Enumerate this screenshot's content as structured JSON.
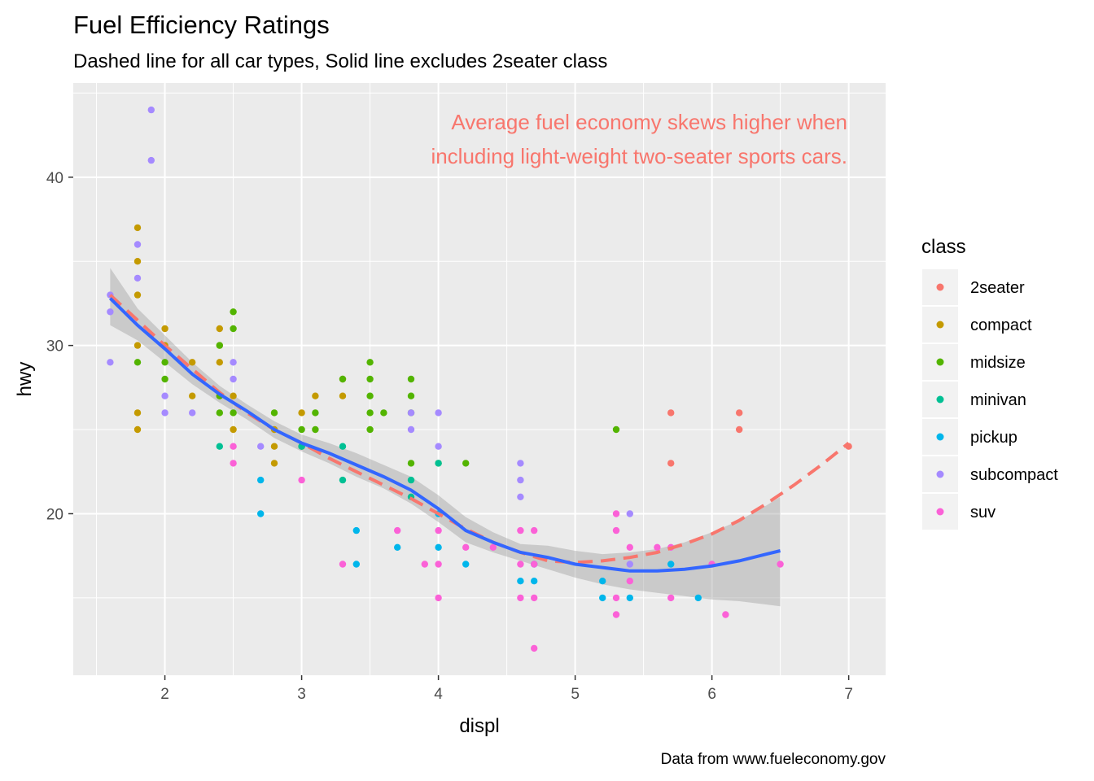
{
  "chart_data": {
    "type": "scatter",
    "title": "Fuel Efficiency Ratings",
    "subtitle": "Dashed line for all car types, Solid line excludes 2seater class",
    "xlabel": "displ",
    "ylabel": "hwy",
    "caption": "Data from www.fueleconomy.gov",
    "annotation": [
      "Average fuel economy skews higher when",
      "including light-weight two-seater sports cars."
    ],
    "annotation_color": "#F8766D",
    "xlim": [
      1.33,
      7.27
    ],
    "ylim": [
      10.4,
      45.6
    ],
    "x_ticks": [
      2,
      3,
      4,
      5,
      6,
      7
    ],
    "y_ticks": [
      20,
      30,
      40
    ],
    "grid": true,
    "legend": {
      "title": "class",
      "position": "right",
      "entries": [
        {
          "name": "2seater",
          "color": "#F8766D"
        },
        {
          "name": "compact",
          "color": "#C49A00"
        },
        {
          "name": "midsize",
          "color": "#53B400"
        },
        {
          "name": "minivan",
          "color": "#00C094"
        },
        {
          "name": "pickup",
          "color": "#00B6EB"
        },
        {
          "name": "subcompact",
          "color": "#A58AFF"
        },
        {
          "name": "suv",
          "color": "#FB61D7"
        }
      ]
    },
    "series": [
      {
        "name": "2seater",
        "color": "#F8766D",
        "points": [
          [
            5.7,
            26
          ],
          [
            5.7,
            23
          ],
          [
            6.2,
            26
          ],
          [
            6.2,
            25
          ],
          [
            7.0,
            24
          ]
        ]
      },
      {
        "name": "compact",
        "color": "#C49A00",
        "points": [
          [
            1.8,
            37
          ],
          [
            1.8,
            35
          ],
          [
            1.8,
            33
          ],
          [
            1.8,
            30
          ],
          [
            1.8,
            26
          ],
          [
            1.8,
            25
          ],
          [
            2.0,
            31
          ],
          [
            2.0,
            30
          ],
          [
            2.2,
            29
          ],
          [
            2.2,
            27
          ],
          [
            2.4,
            31
          ],
          [
            2.4,
            30
          ],
          [
            2.4,
            29
          ],
          [
            2.4,
            27
          ],
          [
            2.5,
            27
          ],
          [
            2.5,
            25
          ],
          [
            2.8,
            25
          ],
          [
            2.8,
            24
          ],
          [
            2.8,
            23
          ],
          [
            3.0,
            26
          ],
          [
            3.1,
            27
          ],
          [
            3.3,
            28
          ],
          [
            3.3,
            27
          ]
        ]
      },
      {
        "name": "midsize",
        "color": "#53B400",
        "points": [
          [
            1.8,
            29
          ],
          [
            2.0,
            29
          ],
          [
            2.0,
            28
          ],
          [
            2.4,
            30
          ],
          [
            2.4,
            27
          ],
          [
            2.4,
            26
          ],
          [
            2.5,
            32
          ],
          [
            2.5,
            31
          ],
          [
            2.5,
            26
          ],
          [
            2.8,
            26
          ],
          [
            3.0,
            25
          ],
          [
            3.0,
            24
          ],
          [
            3.1,
            26
          ],
          [
            3.1,
            25
          ],
          [
            3.3,
            28
          ],
          [
            3.5,
            29
          ],
          [
            3.5,
            28
          ],
          [
            3.5,
            27
          ],
          [
            3.5,
            26
          ],
          [
            3.5,
            25
          ],
          [
            3.6,
            26
          ],
          [
            3.8,
            28
          ],
          [
            3.8,
            27
          ],
          [
            3.8,
            26
          ],
          [
            3.8,
            23
          ],
          [
            4.0,
            23
          ],
          [
            4.2,
            23
          ],
          [
            5.3,
            25
          ]
        ]
      },
      {
        "name": "minivan",
        "color": "#00C094",
        "points": [
          [
            2.4,
            24
          ],
          [
            3.0,
            24
          ],
          [
            3.3,
            24
          ],
          [
            3.3,
            22
          ],
          [
            3.8,
            22
          ],
          [
            3.8,
            21
          ],
          [
            4.0,
            23
          ]
        ]
      },
      {
        "name": "pickup",
        "color": "#00B6EB",
        "points": [
          [
            2.7,
            22
          ],
          [
            2.7,
            20
          ],
          [
            3.4,
            19
          ],
          [
            3.4,
            17
          ],
          [
            3.7,
            18
          ],
          [
            4.0,
            20
          ],
          [
            4.0,
            18
          ],
          [
            4.2,
            17
          ],
          [
            4.6,
            16
          ],
          [
            4.7,
            17
          ],
          [
            4.7,
            16
          ],
          [
            5.2,
            16
          ],
          [
            5.2,
            15
          ],
          [
            5.4,
            15
          ],
          [
            5.7,
            17
          ],
          [
            5.9,
            15
          ]
        ]
      },
      {
        "name": "subcompact",
        "color": "#A58AFF",
        "points": [
          [
            1.6,
            33
          ],
          [
            1.6,
            32
          ],
          [
            1.6,
            29
          ],
          [
            1.8,
            36
          ],
          [
            1.8,
            34
          ],
          [
            1.9,
            44
          ],
          [
            1.9,
            41
          ],
          [
            2.0,
            27
          ],
          [
            2.0,
            26
          ],
          [
            2.2,
            26
          ],
          [
            2.5,
            29
          ],
          [
            2.5,
            28
          ],
          [
            2.7,
            24
          ],
          [
            3.8,
            26
          ],
          [
            3.8,
            25
          ],
          [
            4.0,
            26
          ],
          [
            4.0,
            24
          ],
          [
            4.6,
            23
          ],
          [
            4.6,
            22
          ],
          [
            4.6,
            21
          ],
          [
            5.4,
            20
          ],
          [
            5.4,
            17
          ]
        ]
      },
      {
        "name": "suv",
        "color": "#FB61D7",
        "points": [
          [
            2.5,
            24
          ],
          [
            2.5,
            23
          ],
          [
            3.0,
            22
          ],
          [
            3.3,
            17
          ],
          [
            3.7,
            19
          ],
          [
            3.9,
            17
          ],
          [
            4.0,
            19
          ],
          [
            4.0,
            17
          ],
          [
            4.0,
            15
          ],
          [
            4.2,
            18
          ],
          [
            4.4,
            18
          ],
          [
            4.6,
            19
          ],
          [
            4.6,
            17
          ],
          [
            4.6,
            15
          ],
          [
            4.7,
            19
          ],
          [
            4.7,
            17
          ],
          [
            4.7,
            15
          ],
          [
            4.7,
            12
          ],
          [
            5.3,
            20
          ],
          [
            5.3,
            19
          ],
          [
            5.3,
            15
          ],
          [
            5.3,
            14
          ],
          [
            5.4,
            18
          ],
          [
            5.4,
            16
          ],
          [
            5.7,
            18
          ],
          [
            5.7,
            15
          ],
          [
            5.6,
            18
          ],
          [
            6.0,
            17
          ],
          [
            6.1,
            14
          ],
          [
            6.5,
            17
          ]
        ]
      }
    ],
    "smooth_all": {
      "style": "dashed",
      "color": "#F8766D",
      "x": [
        1.6,
        1.8,
        2.0,
        2.2,
        2.4,
        2.6,
        2.8,
        3.0,
        3.2,
        3.4,
        3.6,
        3.8,
        4.0,
        4.2,
        4.4,
        4.6,
        4.8,
        5.0,
        5.2,
        5.4,
        5.6,
        5.8,
        6.0,
        6.2,
        6.4,
        6.6,
        6.8,
        7.0
      ],
      "y": [
        33.0,
        31.5,
        30.0,
        28.6,
        27.2,
        26.0,
        25.0,
        24.2,
        23.3,
        22.5,
        21.7,
        20.9,
        20.0,
        19.1,
        18.3,
        17.7,
        17.2,
        17.1,
        17.2,
        17.4,
        17.7,
        18.2,
        18.8,
        19.6,
        20.6,
        21.7,
        22.9,
        24.2
      ]
    },
    "smooth_excl_2seater": {
      "style": "solid",
      "color": "#3366FF",
      "x": [
        1.6,
        1.8,
        2.0,
        2.2,
        2.4,
        2.6,
        2.8,
        3.0,
        3.2,
        3.4,
        3.6,
        3.8,
        4.0,
        4.2,
        4.4,
        4.6,
        4.8,
        5.0,
        5.2,
        5.4,
        5.6,
        5.8,
        6.0,
        6.2,
        6.4,
        6.5
      ],
      "y": [
        32.8,
        31.2,
        29.8,
        28.3,
        27.1,
        26.1,
        25.0,
        24.2,
        23.6,
        22.9,
        22.2,
        21.4,
        20.3,
        19.0,
        18.3,
        17.7,
        17.4,
        17.0,
        16.8,
        16.6,
        16.6,
        16.7,
        16.9,
        17.2,
        17.6,
        17.8
      ],
      "se_lower": [
        31.2,
        30.3,
        29.0,
        27.7,
        26.6,
        25.6,
        24.5,
        23.7,
        23.0,
        22.2,
        21.5,
        20.6,
        19.5,
        18.3,
        17.7,
        17.2,
        16.7,
        16.2,
        15.8,
        15.5,
        15.3,
        15.1,
        14.9,
        14.8,
        14.6,
        14.5
      ],
      "se_upper": [
        34.6,
        32.2,
        30.6,
        29.0,
        27.6,
        26.5,
        25.5,
        24.7,
        24.2,
        23.6,
        22.9,
        22.2,
        21.1,
        19.8,
        18.9,
        18.2,
        18.1,
        17.8,
        17.6,
        17.7,
        17.9,
        18.3,
        18.9,
        19.6,
        20.5,
        21.0
      ]
    }
  }
}
